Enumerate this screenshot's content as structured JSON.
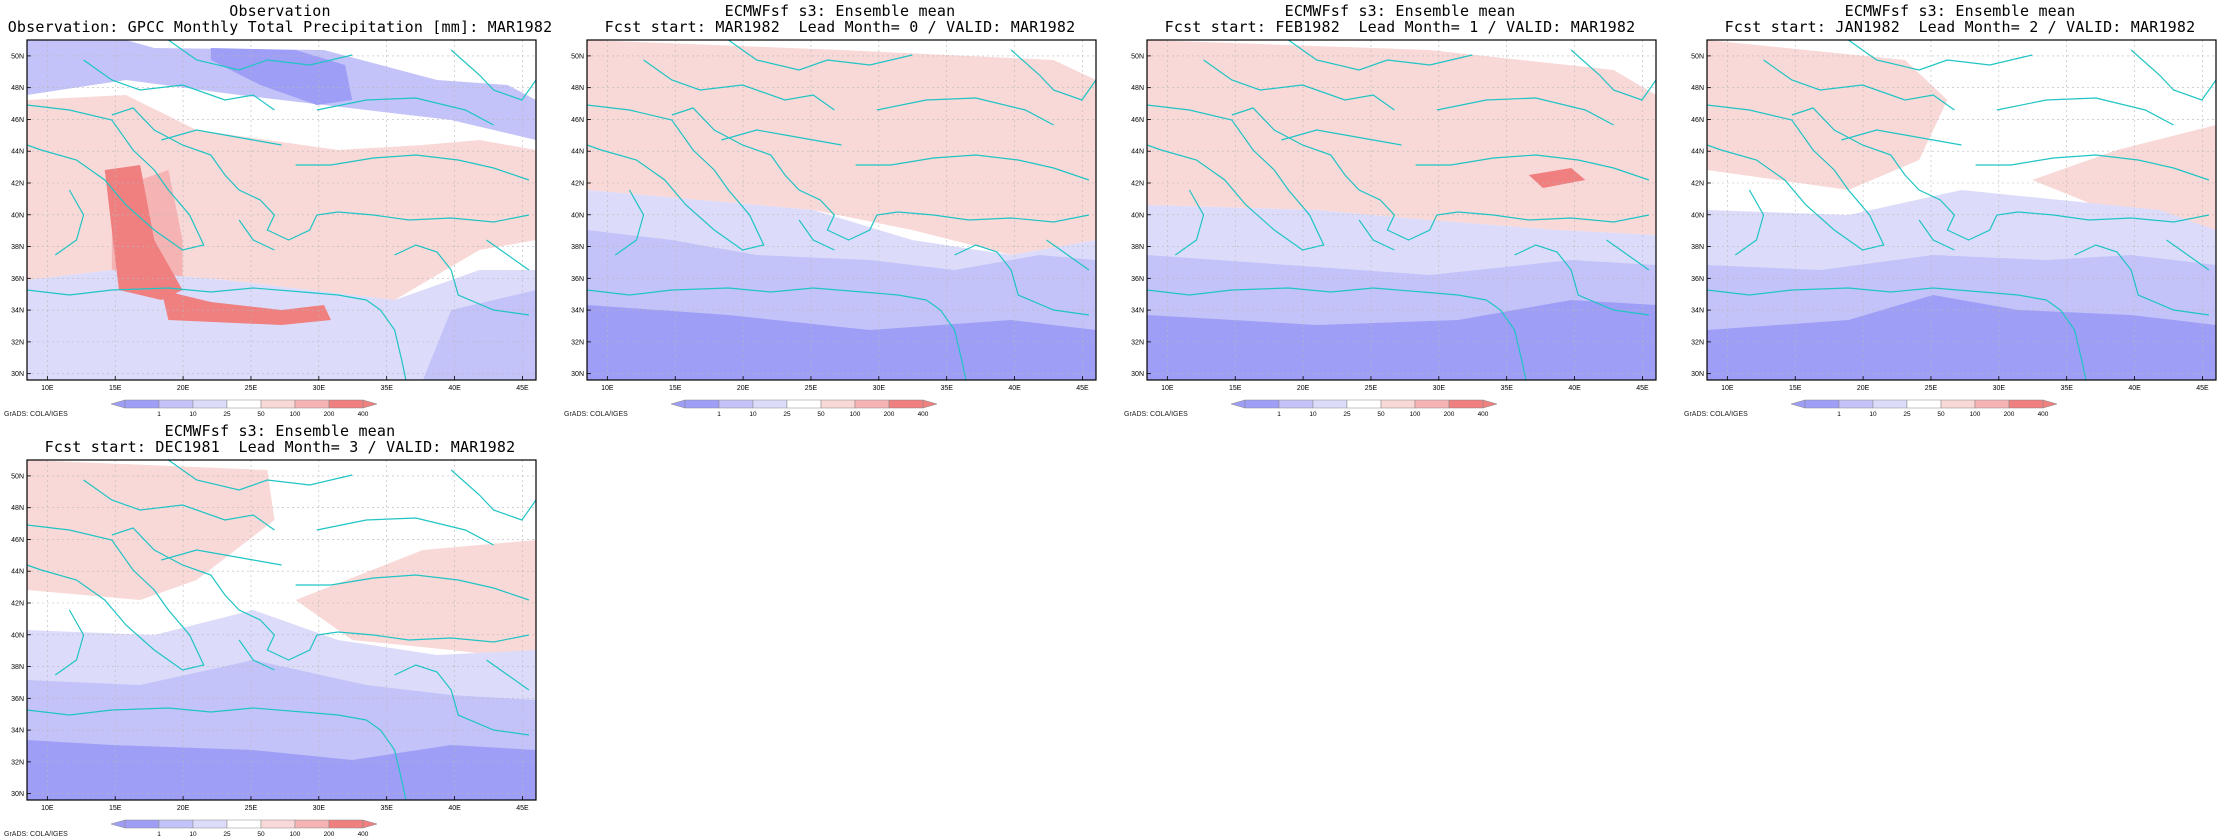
{
  "colors": {
    "neg3": "#9e9ef7",
    "neg2": "#c3c3f9",
    "neg1": "#dcdcfa",
    "pos1": "#f9d8d8",
    "pos2": "#f5b3b3",
    "pos3": "#f07f7f",
    "coast": "#20c4c4",
    "grid": "#b8b8b8"
  },
  "credit": "GrADS: COLA/IGES",
  "legend_labels": [
    "1",
    "10",
    "25",
    "50",
    "100",
    "200",
    "400"
  ],
  "lat_labels": [
    "30N",
    "32N",
    "34N",
    "36N",
    "38N",
    "40N",
    "42N",
    "44N",
    "46N",
    "48N",
    "50N"
  ],
  "lon_labels": [
    "10E",
    "15E",
    "20E",
    "25E",
    "30E",
    "35E",
    "40E",
    "45E"
  ],
  "panels": [
    {
      "title1": "Observation",
      "title2": "Observation: GPCC Monthly Total Precipitation [mm]: MAR1982"
    },
    {
      "title1": "ECMWFsf s3: Ensemble mean",
      "title2": "Fcst start: MAR1982  Lead Month= 0 / VALID: MAR1982"
    },
    {
      "title1": "ECMWFsf s3: Ensemble mean",
      "title2": "Fcst start: FEB1982  Lead Month= 1 / VALID: MAR1982"
    },
    {
      "title1": "ECMWFsf s3: Ensemble mean",
      "title2": "Fcst start: JAN1982  Lead Month= 2 / VALID: MAR1982"
    },
    {
      "title1": "ECMWFsf s3: Ensemble mean",
      "title2": "Fcst start: DEC1981  Lead Month= 3 / VALID: MAR1982"
    }
  ]
}
